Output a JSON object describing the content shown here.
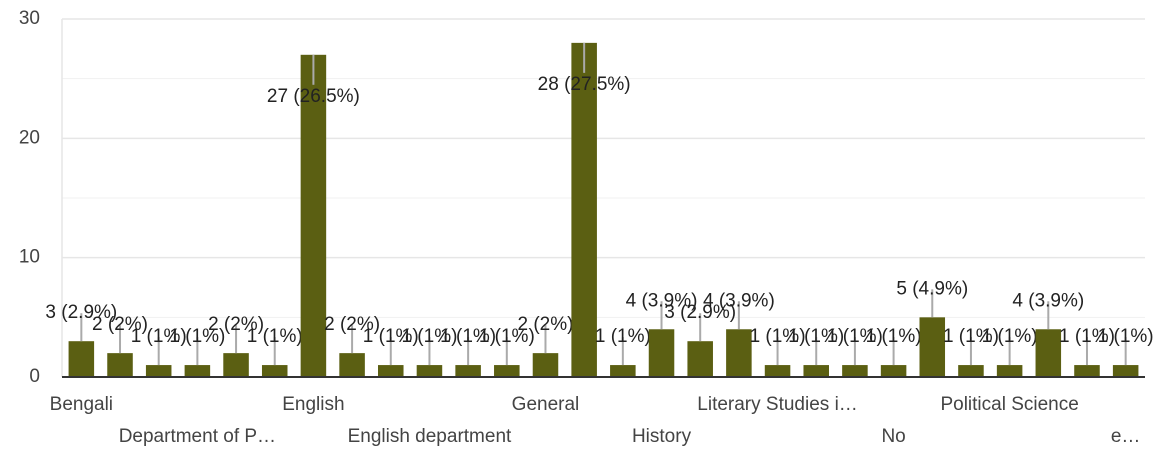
{
  "chart_data": {
    "type": "bar",
    "categories": [
      "Bengali",
      null,
      null,
      "Department of P…",
      null,
      null,
      "English",
      null,
      null,
      "English department",
      null,
      null,
      "General",
      null,
      null,
      "History",
      null,
      null,
      "Literary Studies i…",
      null,
      null,
      "No",
      null,
      null,
      "Political Science",
      null,
      null,
      "e…"
    ],
    "values": [
      3,
      2,
      1,
      1,
      2,
      1,
      27,
      2,
      1,
      1,
      1,
      1,
      2,
      28,
      1,
      4,
      3,
      4,
      1,
      1,
      1,
      1,
      5,
      1,
      1,
      4,
      1,
      1
    ],
    "value_labels": [
      "3 (2.9%)",
      "2 (2%)",
      "1 (1%)",
      "1 (1%)",
      "2 (2%)",
      "1 (1%)",
      "27 (26.5%)",
      "2 (2%)",
      "1 (1%)",
      "1 (1%)",
      "1 (1%)",
      "1 (1%)",
      "2 (2%)",
      "28 (27.5%)",
      "1 (1%)",
      "4 (3.9%)",
      "3 (2.9%)",
      "4 (3.9%)",
      "1 (1%)",
      "1 (1%)",
      "1 (1%)",
      "1 (1%)",
      "5 (4.9%)",
      "1 (1%)",
      "1 (1%)",
      "4 (3.9%)",
      "1 (1%)",
      "1 (1%)"
    ],
    "color": "#5b5f12",
    "ylim": [
      0,
      30
    ],
    "yticks": [
      0,
      10,
      20,
      30
    ],
    "grid": true
  }
}
